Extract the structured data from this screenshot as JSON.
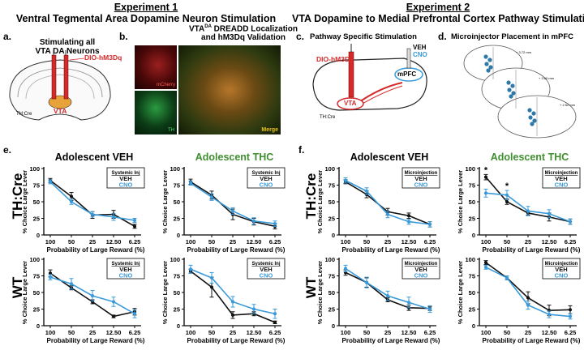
{
  "headers": {
    "exp1_title": "Experiment 1",
    "exp1_subtitle": "Ventral Tegmental Area Dopamine Neuron Stimulation",
    "exp2_title": "Experiment 2",
    "exp2_subtitle": "VTA Dopamine to Medial Prefrontal Cortex Pathway Stimulation"
  },
  "panels": {
    "a": {
      "letter": "a.",
      "title_line1": "Stimulating all",
      "title_line2": "VTA DA Neurons",
      "virus": "DIO-hM3Dq",
      "region": "VTA",
      "strain": "TH:Cre"
    },
    "b": {
      "letter": "b.",
      "title_line1": "VTA",
      "title_sup": "DA",
      "title_rest": " DREADD Localization",
      "title_line2": "and hM3Dq Validation",
      "label_mcherry": "mCherry",
      "label_th": "TH",
      "label_merge": "Merge"
    },
    "c": {
      "letter": "c.",
      "title": "Pathway Specific Stimulation",
      "virus": "DIO-hM3Dq",
      "veh": "VEH",
      "cno": "CNO",
      "vta": "VTA",
      "mpfc": "mPFC",
      "strain": "TH:Cre"
    },
    "d": {
      "letter": "d.",
      "title": "Microinjector Placement in mPFC",
      "coord1": "+ 3.72 mm",
      "coord2": "+ 3.00 mm",
      "coord3": "+ 2.52 mm"
    },
    "e": {
      "letter": "e."
    },
    "f": {
      "letter": "f."
    }
  },
  "rows": {
    "top": "TH:Cre",
    "bottom": "WT"
  },
  "colors": {
    "veh": "#111111",
    "cno": "#3a9ad9",
    "thc_green": "#3f8f2f",
    "red": "#d42a2a",
    "merge_yellow": "#e8c21a"
  },
  "axis": {
    "ylabel": "% Choice Large Lever",
    "xlabel": "Probability of Large Reward (%)",
    "yticks": [
      "0",
      "25",
      "50",
      "75",
      "100"
    ],
    "xticks": [
      "100",
      "50",
      "25",
      "12.50",
      "6.25"
    ]
  },
  "chart_data": [
    {
      "type": "line",
      "panel": "e",
      "title": "Adolescent VEH",
      "title_green": false,
      "row": "TH:Cre",
      "box": [
        "Systemic Inj",
        "VEH",
        "CNO"
      ],
      "categories": [
        "100",
        "50",
        "25",
        "12.50",
        "6.25"
      ],
      "ylim": [
        0,
        100
      ],
      "series": [
        {
          "name": "VEH",
          "values": [
            82,
            58,
            30,
            31,
            13
          ],
          "err": [
            3,
            6,
            5,
            6,
            3
          ]
        },
        {
          "name": "CNO",
          "values": [
            80,
            50,
            31,
            27,
            22
          ],
          "err": [
            3,
            4,
            4,
            5,
            3
          ]
        }
      ]
    },
    {
      "type": "line",
      "panel": "e",
      "title": "Adolescent THC",
      "title_green": true,
      "row": "TH:Cre",
      "box": [
        "Systemic Inj",
        "VEH",
        "CNO"
      ],
      "categories": [
        "100",
        "50",
        "25",
        "12.50",
        "6.25"
      ],
      "ylim": [
        0,
        100
      ],
      "series": [
        {
          "name": "VEH",
          "values": [
            80,
            60,
            31,
            20,
            13
          ],
          "err": [
            4,
            6,
            8,
            5,
            4
          ]
        },
        {
          "name": "CNO",
          "values": [
            78,
            57,
            36,
            21,
            17
          ],
          "err": [
            3,
            5,
            5,
            5,
            4
          ]
        }
      ]
    },
    {
      "type": "line",
      "panel": "e",
      "title": "",
      "title_green": false,
      "row": "WT",
      "box": [
        "Systemic Inj",
        "VEH",
        "CNO"
      ],
      "categories": [
        "100",
        "50",
        "25",
        "12.50",
        "6.25"
      ],
      "ylim": [
        0,
        100
      ],
      "series": [
        {
          "name": "VEH",
          "values": [
            79,
            57,
            36,
            14,
            21
          ],
          "err": [
            5,
            3,
            3,
            2,
            5
          ]
        },
        {
          "name": "CNO",
          "values": [
            73,
            63,
            45,
            36,
            18
          ],
          "err": [
            4,
            8,
            8,
            7,
            6
          ]
        }
      ]
    },
    {
      "type": "line",
      "panel": "e",
      "title": "",
      "title_green": false,
      "row": "WT",
      "box": [
        "Systemic Inj",
        "VEH",
        "CNO"
      ],
      "categories": [
        "100",
        "50",
        "25",
        "12.50",
        "6.25"
      ],
      "ylim": [
        0,
        100
      ],
      "series": [
        {
          "name": "VEH",
          "values": [
            82,
            58,
            16,
            18,
            5
          ],
          "err": [
            3,
            15,
            5,
            3,
            2
          ]
        },
        {
          "name": "CNO",
          "values": [
            85,
            72,
            36,
            25,
            18
          ],
          "err": [
            6,
            8,
            8,
            7,
            7
          ]
        }
      ]
    },
    {
      "type": "line",
      "panel": "f",
      "title": "Adolescent VEH",
      "title_green": false,
      "row": "TH:Cre",
      "box": [
        "Microinjection",
        "VEH",
        "CNO"
      ],
      "categories": [
        "100",
        "50",
        "25",
        "12.50",
        "6.25"
      ],
      "ylim": [
        0,
        100
      ],
      "series": [
        {
          "name": "VEH",
          "values": [
            80,
            61,
            35,
            29,
            16
          ],
          "err": [
            3,
            5,
            5,
            4,
            4
          ]
        },
        {
          "name": "CNO",
          "values": [
            82,
            66,
            31,
            20,
            16
          ],
          "err": [
            4,
            5,
            5,
            4,
            4
          ]
        }
      ]
    },
    {
      "type": "line",
      "panel": "f",
      "title": "Adolescent THC",
      "title_green": true,
      "row": "TH:Cre",
      "box": [
        "Microinjection",
        "VEH",
        "CNO"
      ],
      "stars": [
        0,
        1
      ],
      "categories": [
        "100",
        "50",
        "25",
        "12.50",
        "6.25"
      ],
      "ylim": [
        0,
        100
      ],
      "series": [
        {
          "name": "VEH",
          "values": [
            87,
            50,
            33,
            27,
            20
          ],
          "err": [
            4,
            4,
            3,
            6,
            4
          ]
        },
        {
          "name": "CNO",
          "values": [
            63,
            60,
            36,
            32,
            20
          ],
          "err": [
            6,
            7,
            7,
            6,
            4
          ]
        }
      ]
    },
    {
      "type": "line",
      "panel": "f",
      "title": "",
      "title_green": false,
      "row": "WT",
      "box": [
        "Microinjection",
        "VEH",
        "CNO"
      ],
      "categories": [
        "100",
        "50",
        "25",
        "12.50",
        "6.25"
      ],
      "ylim": [
        0,
        100
      ],
      "series": [
        {
          "name": "VEH",
          "values": [
            80,
            65,
            39,
            27,
            26
          ],
          "err": [
            4,
            7,
            3,
            4,
            3
          ]
        },
        {
          "name": "CNO",
          "values": [
            86,
            65,
            45,
            35,
            25
          ],
          "err": [
            5,
            8,
            7,
            8,
            5
          ]
        }
      ]
    },
    {
      "type": "line",
      "panel": "f",
      "title": "",
      "title_green": false,
      "row": "WT",
      "box": [
        "Microinjection",
        "VEH",
        "CNO"
      ],
      "categories": [
        "100",
        "50",
        "25",
        "12.50",
        "6.25"
      ],
      "ylim": [
        0,
        100
      ],
      "series": [
        {
          "name": "VEH",
          "values": [
            95,
            72,
            42,
            23,
            24
          ],
          "err": [
            3,
            3,
            9,
            8,
            6
          ]
        },
        {
          "name": "CNO",
          "values": [
            88,
            72,
            31,
            17,
            14
          ],
          "err": [
            3,
            3,
            6,
            5,
            4
          ]
        }
      ]
    }
  ]
}
